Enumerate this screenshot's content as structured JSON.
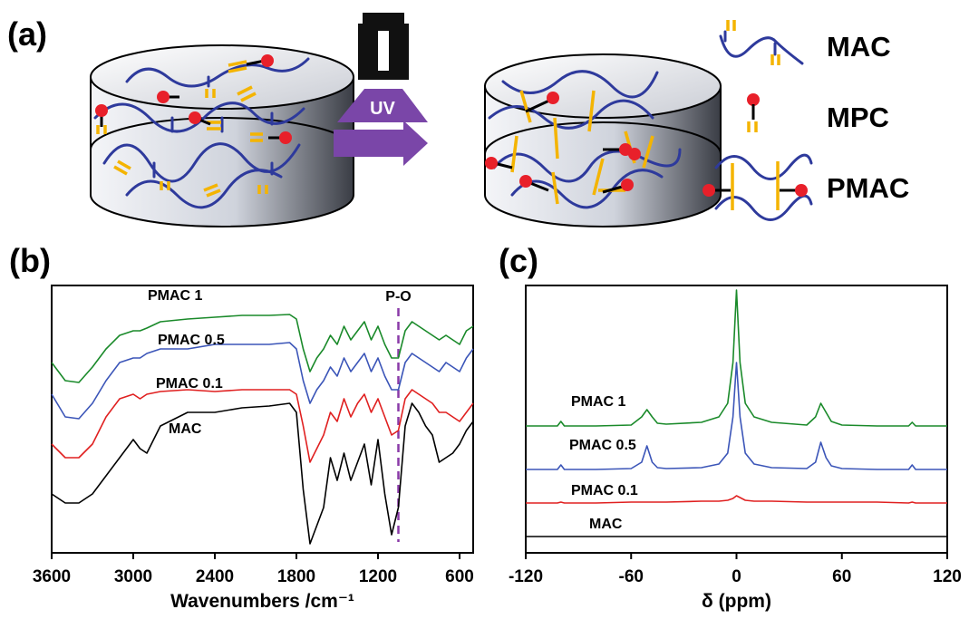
{
  "panel_a": {
    "label": "(a)",
    "lamp_label": "UV",
    "legend": [
      "MAC",
      "MPC",
      "PMAC"
    ]
  },
  "chart_data": [
    {
      "type": "line",
      "panel_label": "(b)",
      "x_label": "Wavenumbers /cm⁻¹",
      "x": [
        3600,
        3500,
        3400,
        3300,
        3200,
        3100,
        3000,
        2950,
        2900,
        2800,
        2600,
        2400,
        2200,
        2000,
        1850,
        1800,
        1750,
        1700,
        1650,
        1600,
        1550,
        1500,
        1450,
        1400,
        1350,
        1300,
        1250,
        1200,
        1150,
        1100,
        1050,
        1000,
        950,
        900,
        850,
        800,
        750,
        700,
        650,
        600,
        550,
        500
      ],
      "xlim": [
        3600,
        500
      ],
      "xticks": [
        3600,
        3000,
        2400,
        1800,
        1200,
        600
      ],
      "ylim": [
        0,
        295
      ],
      "annotation": {
        "text": "P-O",
        "x": 1050
      },
      "series": [
        {
          "name": "PMAC 1",
          "color": "#1a8a2a",
          "values": [
            210,
            190,
            188,
            205,
            225,
            240,
            245,
            245,
            248,
            255,
            258,
            260,
            262,
            262,
            263,
            258,
            225,
            200,
            215,
            225,
            240,
            230,
            250,
            235,
            245,
            255,
            235,
            250,
            230,
            215,
            215,
            245,
            255,
            250,
            245,
            240,
            235,
            240,
            235,
            230,
            245,
            250
          ]
        },
        {
          "name": "PMAC 0.5",
          "color": "#3b55b8",
          "values": [
            175,
            150,
            148,
            165,
            190,
            210,
            215,
            215,
            220,
            225,
            225,
            230,
            230,
            230,
            232,
            225,
            190,
            165,
            180,
            190,
            205,
            195,
            215,
            200,
            210,
            220,
            200,
            215,
            195,
            180,
            180,
            210,
            220,
            215,
            210,
            205,
            200,
            210,
            205,
            200,
            215,
            225
          ]
        },
        {
          "name": "PMAC 0.1",
          "color": "#e02020",
          "values": [
            120,
            105,
            105,
            120,
            150,
            170,
            175,
            170,
            175,
            178,
            180,
            178,
            180,
            180,
            180,
            175,
            140,
            100,
            115,
            130,
            155,
            145,
            170,
            150,
            165,
            175,
            155,
            170,
            150,
            130,
            135,
            170,
            180,
            175,
            170,
            165,
            155,
            155,
            150,
            145,
            155,
            165
          ]
        },
        {
          "name": "MAC",
          "color": "#000000",
          "values": [
            65,
            55,
            55,
            65,
            85,
            105,
            125,
            115,
            110,
            140,
            155,
            155,
            160,
            162,
            165,
            155,
            70,
            10,
            30,
            50,
            105,
            80,
            110,
            80,
            100,
            120,
            75,
            125,
            65,
            20,
            50,
            140,
            165,
            155,
            140,
            130,
            100,
            105,
            110,
            120,
            135,
            145
          ]
        }
      ]
    },
    {
      "type": "line",
      "panel_label": "(c)",
      "x_label": "δ (ppm)",
      "x": [
        -120,
        -102,
        -100,
        -98,
        -80,
        -60,
        -54,
        -51,
        -48,
        -45,
        -40,
        -20,
        -10,
        -5,
        -2,
        0,
        2,
        5,
        10,
        20,
        40,
        45,
        48,
        51,
        54,
        60,
        80,
        98,
        100,
        102,
        120
      ],
      "xlim": [
        -120,
        120
      ],
      "xticks": [
        -120,
        -60,
        0,
        60,
        120
      ],
      "ylim": [
        0,
        295
      ],
      "series": [
        {
          "name": "PMAC 1",
          "color": "#1a8a2a",
          "values": [
            140,
            140,
            145,
            140,
            140,
            141,
            150,
            158,
            150,
            143,
            142,
            144,
            150,
            165,
            210,
            290,
            210,
            165,
            150,
            144,
            141,
            150,
            165,
            155,
            145,
            141,
            140,
            140,
            144,
            140,
            140
          ]
        },
        {
          "name": "PMAC 0.5",
          "color": "#3b55b8",
          "values": [
            92,
            92,
            97,
            92,
            92,
            93,
            100,
            118,
            100,
            94,
            93,
            94,
            98,
            110,
            150,
            210,
            150,
            110,
            98,
            94,
            93,
            100,
            122,
            105,
            96,
            93,
            92,
            92,
            97,
            92,
            92
          ]
        },
        {
          "name": "PMAC 0.1",
          "color": "#e02020",
          "values": [
            55,
            55,
            56,
            55,
            55,
            56,
            56,
            56,
            56,
            56,
            56,
            57,
            57,
            58,
            60,
            63,
            61,
            58,
            57,
            57,
            56,
            56,
            56,
            56,
            56,
            56,
            56,
            55,
            56,
            55,
            55
          ]
        },
        {
          "name": "MAC",
          "color": "#000000",
          "values": [
            18,
            18,
            18,
            18,
            18,
            18,
            18,
            18,
            18,
            18,
            18,
            18,
            18,
            18,
            18,
            18,
            18,
            18,
            18,
            18,
            18,
            18,
            18,
            18,
            18,
            18,
            18,
            18,
            18,
            18,
            18
          ]
        }
      ]
    }
  ]
}
